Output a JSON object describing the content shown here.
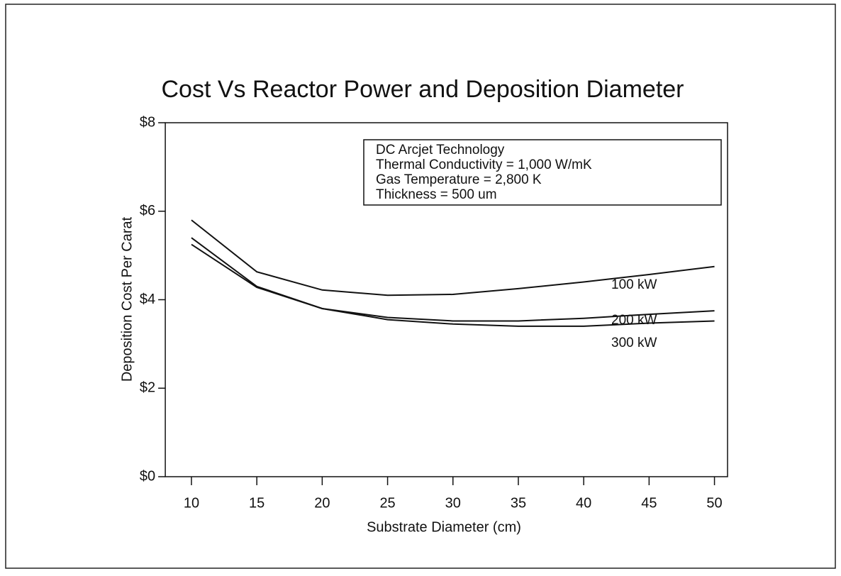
{
  "chart_data": {
    "type": "line",
    "title": "Cost Vs Reactor Power and Deposition Diameter",
    "x_label": "Substrate Diameter (cm)",
    "y_label": "Deposition Cost Per Carat",
    "x": [
      10,
      15,
      20,
      25,
      30,
      35,
      40,
      45,
      50
    ],
    "series": [
      {
        "name": "100 kW",
        "color": "#111111",
        "values": [
          5.8,
          4.63,
          4.22,
          4.1,
          4.12,
          4.25,
          4.4,
          4.57,
          4.75
        ]
      },
      {
        "name": "200 kW",
        "color": "#111111",
        "values": [
          5.4,
          4.3,
          3.8,
          3.6,
          3.52,
          3.52,
          3.58,
          3.67,
          3.75
        ]
      },
      {
        "name": "300 kW",
        "color": "#111111",
        "values": [
          5.25,
          4.28,
          3.8,
          3.55,
          3.45,
          3.4,
          3.4,
          3.47,
          3.52
        ]
      }
    ],
    "annotations": [
      "DC Arcjet Technology",
      "Thermal Conductivity = 1,000 W/mK",
      "Gas Temperature = 2,800 K",
      "Thickness = 500 um"
    ],
    "xlim": [
      8,
      51
    ],
    "xticks": [
      10,
      15,
      20,
      25,
      30,
      35,
      40,
      45,
      50
    ],
    "ylim": [
      0,
      8
    ],
    "yticks": [
      {
        "value": 0,
        "label": "$0"
      },
      {
        "value": 2,
        "label": "$2"
      },
      {
        "value": 4,
        "label": "$4"
      },
      {
        "value": 6,
        "label": "$6"
      },
      {
        "value": 8,
        "label": "$8"
      }
    ],
    "grid": false
  }
}
